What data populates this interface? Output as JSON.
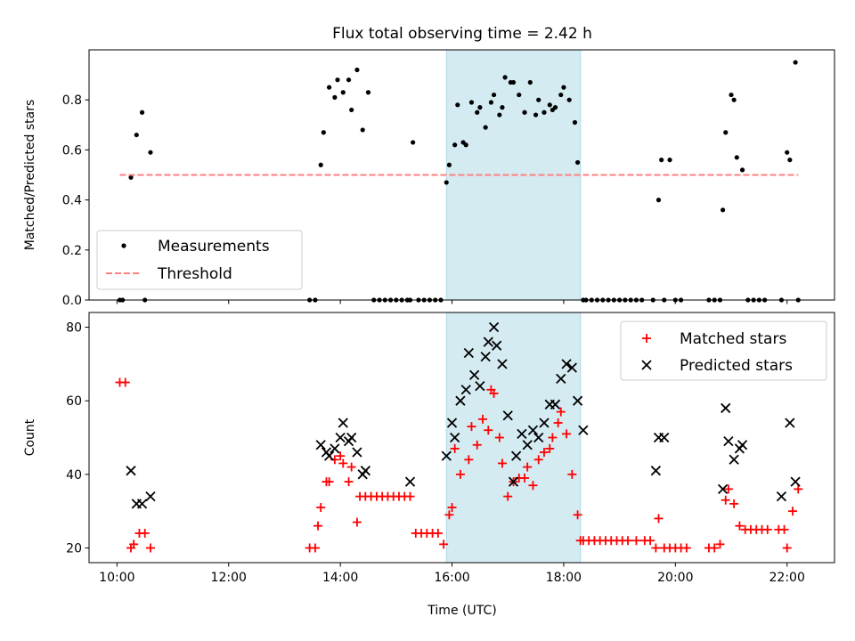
{
  "chart_data": [
    {
      "type": "scatter",
      "title": "Flux total observing time = 2.42 h",
      "ylabel": "Matched/Predicted stars",
      "xlabel": "",
      "xlim": [
        9.5,
        22.85
      ],
      "ylim": [
        0,
        1.0
      ],
      "yticks": [
        0.0,
        0.2,
        0.4,
        0.6,
        0.8
      ],
      "ytick_labels": [
        "0.0",
        "0.2",
        "0.4",
        "0.6",
        "0.8"
      ],
      "shaded_interval": [
        15.9,
        18.3
      ],
      "shade_color": "#add8e6",
      "legend_position": "lower-left",
      "series": [
        {
          "name": "Measurements",
          "marker": "dot",
          "color": "#000000",
          "x": [
            10.05,
            10.1,
            10.25,
            10.35,
            10.45,
            10.5,
            10.6,
            13.45,
            13.55,
            13.65,
            13.7,
            13.8,
            13.9,
            13.95,
            14.05,
            14.15,
            14.2,
            14.3,
            14.4,
            14.5,
            14.6,
            14.7,
            14.8,
            14.9,
            15.0,
            15.1,
            15.2,
            15.25,
            15.3,
            15.4,
            15.5,
            15.6,
            15.7,
            15.8,
            15.9,
            15.95,
            16.05,
            16.1,
            16.2,
            16.25,
            16.35,
            16.45,
            16.5,
            16.6,
            16.7,
            16.75,
            16.85,
            16.9,
            16.95,
            17.05,
            17.1,
            17.2,
            17.3,
            17.4,
            17.5,
            17.55,
            17.65,
            17.75,
            17.8,
            17.85,
            17.95,
            18.0,
            18.1,
            18.2,
            18.25,
            18.35,
            18.4,
            18.5,
            18.6,
            18.7,
            18.8,
            18.9,
            19.0,
            19.1,
            19.2,
            19.3,
            19.4,
            19.6,
            19.7,
            19.75,
            19.8,
            19.9,
            20.0,
            20.1,
            20.6,
            20.7,
            20.8,
            20.85,
            20.9,
            21.0,
            21.05,
            21.1,
            21.2,
            21.3,
            21.4,
            21.5,
            21.6,
            21.9,
            22.0,
            22.05,
            22.15,
            22.2
          ],
          "y": [
            0.0,
            0.0,
            0.49,
            0.66,
            0.75,
            0.0,
            0.59,
            0.0,
            0.0,
            0.54,
            0.67,
            0.85,
            0.81,
            0.88,
            0.83,
            0.88,
            0.76,
            0.92,
            0.68,
            0.83,
            0.0,
            0.0,
            0.0,
            0.0,
            0.0,
            0.0,
            0.0,
            0.0,
            0.63,
            0.0,
            0.0,
            0.0,
            0.0,
            0.0,
            0.47,
            0.54,
            0.62,
            0.78,
            0.63,
            0.62,
            0.79,
            0.75,
            0.77,
            0.69,
            0.79,
            0.82,
            0.74,
            0.77,
            0.89,
            0.87,
            0.87,
            0.82,
            0.75,
            0.87,
            0.74,
            0.8,
            0.75,
            0.78,
            0.76,
            0.77,
            0.82,
            0.85,
            0.8,
            0.71,
            0.55,
            0.0,
            0.0,
            0.0,
            0.0,
            0.0,
            0.0,
            0.0,
            0.0,
            0.0,
            0.0,
            0.0,
            0.0,
            0.0,
            0.4,
            0.56,
            0.0,
            0.56,
            0.0,
            0.0,
            0.0,
            0.0,
            0.0,
            0.36,
            0.67,
            0.82,
            0.8,
            0.57,
            0.52,
            0.0,
            0.0,
            0.0,
            0.0,
            0.0,
            0.59,
            0.56,
            0.95,
            0.0
          ]
        },
        {
          "name": "Threshold",
          "marker": "dashed-line",
          "color": "#ff7f7f",
          "x": [
            10.05,
            22.2
          ],
          "y": [
            0.5,
            0.5
          ]
        }
      ]
    },
    {
      "type": "scatter",
      "title": "",
      "ylabel": "Count",
      "xlabel": "Time (UTC)",
      "xlim": [
        9.5,
        22.85
      ],
      "ylim": [
        16,
        84
      ],
      "yticks": [
        20,
        40,
        60,
        80
      ],
      "ytick_labels": [
        "20",
        "40",
        "60",
        "80"
      ],
      "xticks": [
        10,
        12,
        14,
        16,
        18,
        20,
        22
      ],
      "xtick_labels": [
        "10:00",
        "12:00",
        "14:00",
        "16:00",
        "18:00",
        "20:00",
        "22:00"
      ],
      "shaded_interval": [
        15.9,
        18.3
      ],
      "shade_color": "#add8e6",
      "legend_position": "upper-right",
      "series": [
        {
          "name": "Matched stars",
          "marker": "plus",
          "color": "#ff0000",
          "x": [
            10.05,
            10.15,
            10.25,
            10.3,
            10.4,
            10.5,
            10.6,
            13.45,
            13.55,
            13.6,
            13.65,
            13.75,
            13.8,
            13.9,
            14.0,
            14.05,
            14.15,
            14.2,
            14.3,
            14.35,
            14.45,
            14.55,
            14.65,
            14.75,
            14.85,
            14.95,
            15.05,
            15.15,
            15.25,
            15.35,
            15.45,
            15.55,
            15.65,
            15.75,
            15.85,
            15.95,
            16.0,
            16.05,
            16.15,
            16.3,
            16.35,
            16.45,
            16.55,
            16.65,
            16.7,
            16.75,
            16.85,
            16.9,
            17.0,
            17.1,
            17.2,
            17.3,
            17.35,
            17.45,
            17.55,
            17.65,
            17.75,
            17.8,
            17.9,
            17.95,
            18.05,
            18.15,
            18.25,
            18.3,
            18.35,
            18.45,
            18.55,
            18.65,
            18.75,
            18.85,
            18.95,
            19.05,
            19.15,
            19.3,
            19.45,
            19.55,
            19.65,
            19.7,
            19.8,
            19.9,
            20.0,
            20.1,
            20.2,
            20.6,
            20.7,
            20.8,
            20.9,
            20.95,
            21.05,
            21.15,
            21.25,
            21.35,
            21.45,
            21.55,
            21.65,
            21.85,
            21.95,
            22.0,
            22.1,
            22.2
          ],
          "y": [
            65,
            65,
            20,
            21,
            24,
            24,
            20,
            20,
            20,
            26,
            31,
            38,
            38,
            44,
            45,
            43,
            38,
            42,
            27,
            34,
            34,
            34,
            34,
            34,
            34,
            34,
            34,
            34,
            34,
            24,
            24,
            24,
            24,
            24,
            21,
            29,
            31,
            47,
            40,
            44,
            53,
            48,
            55,
            52,
            63,
            62,
            50,
            43,
            34,
            38,
            39,
            39,
            42,
            37,
            44,
            46,
            47,
            50,
            54,
            57,
            51,
            40,
            29,
            22,
            22,
            22,
            22,
            22,
            22,
            22,
            22,
            22,
            22,
            22,
            22,
            22,
            20,
            28,
            20,
            20,
            20,
            20,
            20,
            20,
            20,
            21,
            33,
            36,
            32,
            26,
            25,
            25,
            25,
            25,
            25,
            25,
            25,
            20,
            30,
            36
          ]
        },
        {
          "name": "Predicted stars",
          "marker": "x",
          "color": "#000000",
          "x": [
            10.25,
            10.35,
            10.45,
            10.6,
            13.65,
            13.75,
            13.8,
            13.9,
            14.0,
            14.05,
            14.15,
            14.2,
            14.3,
            14.4,
            14.45,
            15.25,
            15.9,
            16.0,
            16.05,
            16.15,
            16.25,
            16.3,
            16.4,
            16.5,
            16.6,
            16.65,
            16.75,
            16.8,
            16.9,
            17.0,
            17.1,
            17.15,
            17.25,
            17.35,
            17.45,
            17.55,
            17.65,
            17.75,
            17.85,
            17.95,
            18.05,
            18.15,
            18.25,
            18.35,
            19.65,
            19.7,
            19.8,
            20.85,
            20.9,
            20.95,
            21.05,
            21.15,
            21.2,
            21.9,
            22.05,
            22.15
          ],
          "y": [
            41,
            32,
            32,
            34,
            48,
            46,
            45,
            47,
            50,
            54,
            49,
            50,
            46,
            40,
            41,
            38,
            45,
            54,
            50,
            60,
            63,
            73,
            67,
            64,
            72,
            76,
            80,
            75,
            70,
            56,
            38,
            45,
            51,
            48,
            52,
            50,
            54,
            59,
            59,
            66,
            70,
            69,
            60,
            52,
            41,
            50,
            50,
            36,
            58,
            49,
            44,
            47,
            48,
            34,
            54,
            38
          ]
        }
      ]
    }
  ]
}
